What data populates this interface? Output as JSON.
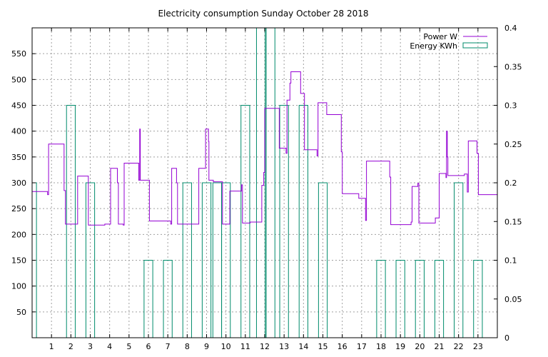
{
  "chart_data": {
    "type": "line",
    "title": "Electricity consumption Sunday October 28 2018",
    "xlabel": "",
    "ylabel": "",
    "xlim": [
      0,
      24
    ],
    "ylim": [
      0,
      600
    ],
    "y2lim": [
      0,
      0.4
    ],
    "x_ticks": [
      1,
      2,
      3,
      4,
      5,
      6,
      7,
      8,
      9,
      10,
      11,
      12,
      13,
      14,
      15,
      16,
      17,
      18,
      19,
      20,
      21,
      22,
      23
    ],
    "y_ticks": [
      50,
      100,
      150,
      200,
      250,
      300,
      350,
      400,
      450,
      500,
      550
    ],
    "y2_ticks": [
      0,
      0.05,
      0.1,
      0.15,
      0.2,
      0.25,
      0.3,
      0.35,
      0.4
    ],
    "grid": true,
    "legend_position": "top-right",
    "series": [
      {
        "name": "Power W",
        "kind": "step-line",
        "axis": "left",
        "color": "#9400d3",
        "points": [
          [
            0,
            283
          ],
          [
            0.8,
            283
          ],
          [
            0.8,
            277
          ],
          [
            0.85,
            277
          ],
          [
            0.85,
            375
          ],
          [
            1.65,
            375
          ],
          [
            1.65,
            285
          ],
          [
            1.72,
            285
          ],
          [
            1.72,
            220
          ],
          [
            2.35,
            220
          ],
          [
            2.35,
            313
          ],
          [
            2.9,
            313
          ],
          [
            2.9,
            218
          ],
          [
            3.75,
            218
          ],
          [
            3.75,
            220
          ],
          [
            4.05,
            220
          ],
          [
            4.05,
            328
          ],
          [
            4.4,
            328
          ],
          [
            4.4,
            300
          ],
          [
            4.45,
            300
          ],
          [
            4.45,
            220
          ],
          [
            4.7,
            220
          ],
          [
            4.7,
            218
          ],
          [
            4.75,
            218
          ],
          [
            4.75,
            338
          ],
          [
            5.5,
            338
          ],
          [
            5.5,
            305
          ],
          [
            5.55,
            305
          ],
          [
            5.55,
            404
          ],
          [
            5.58,
            404
          ],
          [
            5.58,
            305
          ],
          [
            6.05,
            305
          ],
          [
            6.05,
            226
          ],
          [
            7.15,
            226
          ],
          [
            7.15,
            220
          ],
          [
            7.2,
            220
          ],
          [
            7.2,
            328
          ],
          [
            7.45,
            328
          ],
          [
            7.45,
            300
          ],
          [
            7.5,
            300
          ],
          [
            7.5,
            220
          ],
          [
            8.6,
            220
          ],
          [
            8.6,
            328
          ],
          [
            8.95,
            328
          ],
          [
            8.95,
            404
          ],
          [
            9.1,
            404
          ],
          [
            9.1,
            380
          ],
          [
            9.12,
            380
          ],
          [
            9.12,
            305
          ],
          [
            9.35,
            305
          ],
          [
            9.35,
            302
          ],
          [
            9.82,
            302
          ],
          [
            9.82,
            220
          ],
          [
            10.2,
            220
          ],
          [
            10.2,
            284
          ],
          [
            10.8,
            284
          ],
          [
            10.8,
            296
          ],
          [
            10.85,
            296
          ],
          [
            10.85,
            222
          ],
          [
            11.25,
            222
          ],
          [
            11.25,
            224
          ],
          [
            11.85,
            224
          ],
          [
            11.85,
            295
          ],
          [
            11.95,
            295
          ],
          [
            11.95,
            320
          ],
          [
            12.0,
            320
          ],
          [
            12.0,
            444
          ],
          [
            12.75,
            444
          ],
          [
            12.75,
            367
          ],
          [
            13.1,
            367
          ],
          [
            13.1,
            357
          ],
          [
            13.15,
            357
          ],
          [
            13.15,
            460
          ],
          [
            13.3,
            460
          ],
          [
            13.3,
            493
          ],
          [
            13.35,
            493
          ],
          [
            13.35,
            515
          ],
          [
            13.85,
            515
          ],
          [
            13.85,
            473
          ],
          [
            14.05,
            473
          ],
          [
            14.05,
            364
          ],
          [
            14.7,
            364
          ],
          [
            14.7,
            352
          ],
          [
            14.75,
            352
          ],
          [
            14.75,
            455
          ],
          [
            15.2,
            455
          ],
          [
            15.2,
            432
          ],
          [
            15.95,
            432
          ],
          [
            15.95,
            360
          ],
          [
            16.0,
            360
          ],
          [
            16.0,
            279
          ],
          [
            16.85,
            279
          ],
          [
            16.85,
            270
          ],
          [
            17.2,
            270
          ],
          [
            17.2,
            227
          ],
          [
            17.25,
            227
          ],
          [
            17.25,
            342
          ],
          [
            18.45,
            342
          ],
          [
            18.45,
            311
          ],
          [
            18.5,
            311
          ],
          [
            18.5,
            219
          ],
          [
            19.55,
            219
          ],
          [
            19.55,
            224
          ],
          [
            19.6,
            224
          ],
          [
            19.6,
            293
          ],
          [
            19.9,
            293
          ],
          [
            19.9,
            299
          ],
          [
            19.95,
            299
          ],
          [
            19.95,
            222
          ],
          [
            20.8,
            222
          ],
          [
            20.8,
            232
          ],
          [
            21.0,
            232
          ],
          [
            21.0,
            318
          ],
          [
            21.35,
            318
          ],
          [
            21.35,
            310
          ],
          [
            21.38,
            310
          ],
          [
            21.38,
            400
          ],
          [
            21.42,
            400
          ],
          [
            21.42,
            350
          ],
          [
            21.45,
            350
          ],
          [
            21.45,
            314
          ],
          [
            22.3,
            314
          ],
          [
            22.3,
            317
          ],
          [
            22.45,
            317
          ],
          [
            22.45,
            282
          ],
          [
            22.5,
            282
          ],
          [
            22.5,
            381
          ],
          [
            22.95,
            381
          ],
          [
            22.95,
            357
          ],
          [
            23.02,
            357
          ],
          [
            23.02,
            277
          ],
          [
            24,
            277
          ]
        ]
      },
      {
        "name": "Energy KWh",
        "kind": "boxes",
        "axis": "right",
        "color": "#008b6b",
        "bar_width": 0.45,
        "points": [
          [
            0,
            0.2
          ],
          [
            1,
            0
          ],
          [
            2,
            0.3
          ],
          [
            3,
            0.2
          ],
          [
            4,
            0
          ],
          [
            5,
            0
          ],
          [
            6,
            0.1
          ],
          [
            7,
            0.1
          ],
          [
            8,
            0.2
          ],
          [
            9,
            0.2
          ],
          [
            9.55,
            0.2
          ],
          [
            10,
            0.2
          ],
          [
            11,
            0.3
          ],
          [
            11.8,
            0.4
          ],
          [
            12.3,
            0.4
          ],
          [
            13,
            0.3
          ],
          [
            14,
            0.3
          ],
          [
            15,
            0.2
          ],
          [
            16,
            0
          ],
          [
            17,
            0
          ],
          [
            18,
            0.1
          ],
          [
            19,
            0.1
          ],
          [
            20,
            0.1
          ],
          [
            21,
            0.1
          ],
          [
            22,
            0.2
          ],
          [
            23,
            0.1
          ]
        ]
      }
    ]
  }
}
